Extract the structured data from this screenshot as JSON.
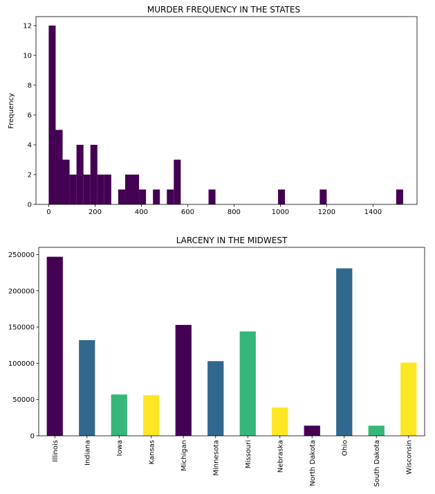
{
  "chart_data": [
    {
      "type": "histogram",
      "title": "MURDER FREQUENCY IN THE STATES",
      "xlabel": "",
      "ylabel": "Frequency",
      "xlim": [
        -55,
        1590
      ],
      "ylim": [
        0,
        12.6
      ],
      "xticks": [
        0,
        200,
        400,
        600,
        800,
        1000,
        1200,
        1400
      ],
      "yticks": [
        0,
        2,
        4,
        6,
        8,
        10,
        12
      ],
      "bin_width": 30,
      "color": "#440154",
      "bins": [
        {
          "start": 0,
          "count": 12
        },
        {
          "start": 30,
          "count": 5
        },
        {
          "start": 60,
          "count": 3
        },
        {
          "start": 90,
          "count": 2
        },
        {
          "start": 120,
          "count": 4
        },
        {
          "start": 150,
          "count": 2
        },
        {
          "start": 180,
          "count": 4
        },
        {
          "start": 210,
          "count": 2
        },
        {
          "start": 240,
          "count": 2
        },
        {
          "start": 300,
          "count": 1
        },
        {
          "start": 330,
          "count": 2
        },
        {
          "start": 360,
          "count": 2
        },
        {
          "start": 390,
          "count": 1
        },
        {
          "start": 450,
          "count": 1
        },
        {
          "start": 510,
          "count": 1
        },
        {
          "start": 540,
          "count": 3
        },
        {
          "start": 690,
          "count": 1
        },
        {
          "start": 990,
          "count": 1
        },
        {
          "start": 1170,
          "count": 1
        },
        {
          "start": 1500,
          "count": 1
        }
      ],
      "grid": false
    },
    {
      "type": "bar",
      "title": "LARCENY IN THE MIDWEST",
      "xlabel": "",
      "ylabel": "",
      "ylim": [
        0,
        260000
      ],
      "yticks": [
        0,
        50000,
        100000,
        150000,
        200000,
        250000
      ],
      "categories": [
        "Illinois",
        "Indiana",
        "Iowa",
        "Kansas",
        "Michigan",
        "Minnesota",
        "Missouri",
        "Nebraska",
        "North Dakota",
        "Ohio",
        "South Dakota",
        "Wisconsin"
      ],
      "values": [
        247000,
        132000,
        57000,
        56000,
        153000,
        103000,
        144000,
        39000,
        14000,
        231000,
        14000,
        101000
      ],
      "colors": [
        "#440154",
        "#31688e",
        "#35b779",
        "#fde725",
        "#440154",
        "#31688e",
        "#35b779",
        "#fde725",
        "#440154",
        "#31688e",
        "#35b779",
        "#fde725"
      ],
      "grid": false
    }
  ]
}
